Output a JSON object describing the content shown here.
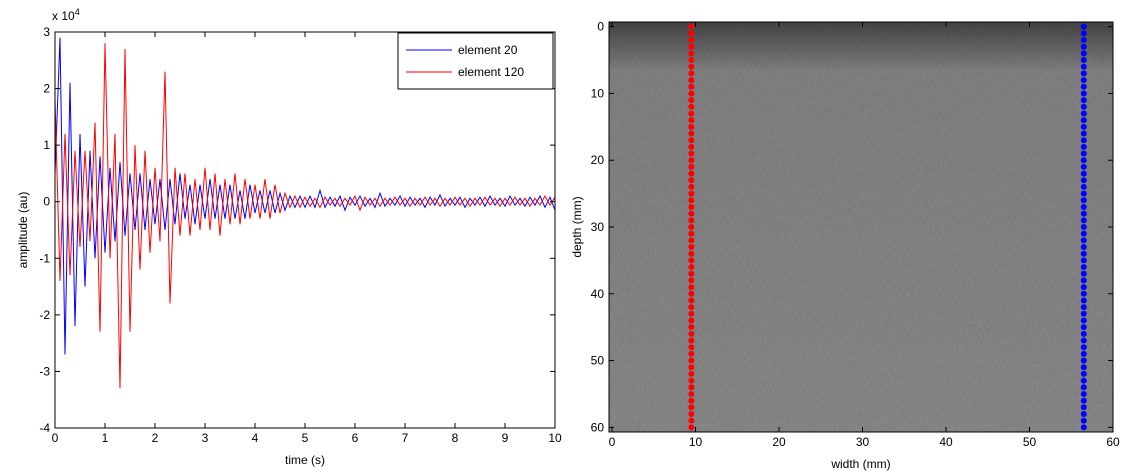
{
  "chart_data": [
    {
      "type": "line",
      "y_exponent_label": {
        "base": "x 10",
        "exponent": "4"
      },
      "xlabel": "time (s)",
      "ylabel": "amplitude (au)",
      "xlim": [
        0,
        10
      ],
      "ylim": [
        -4,
        3
      ],
      "xticks": [
        0,
        1,
        2,
        3,
        4,
        5,
        6,
        7,
        8,
        9,
        10
      ],
      "yticks": [
        -4,
        -3,
        -2,
        -1,
        0,
        1,
        2,
        3
      ],
      "legend": "upper right",
      "x": [
        0,
        0.1,
        0.2,
        0.3,
        0.4,
        0.5,
        0.6,
        0.7,
        0.8,
        0.9,
        1,
        1.1,
        1.2,
        1.3,
        1.4,
        1.5,
        1.6,
        1.7,
        1.8,
        1.9,
        2,
        2.1,
        2.2,
        2.3,
        2.4,
        2.5,
        2.6,
        2.7,
        2.8,
        2.9,
        3,
        3.1,
        3.2,
        3.3,
        3.4,
        3.5,
        3.6,
        3.7,
        3.8,
        3.9,
        4,
        4.1,
        4.2,
        4.3,
        4.4,
        4.5,
        4.6,
        4.7,
        4.8,
        4.9,
        5,
        5.1,
        5.2,
        5.3,
        5.4,
        5.5,
        5.6,
        5.7,
        5.8,
        5.9,
        6,
        6.1,
        6.2,
        6.3,
        6.4,
        6.5,
        6.6,
        6.7,
        6.8,
        6.9,
        7,
        7.1,
        7.2,
        7.3,
        7.4,
        7.5,
        7.6,
        7.7,
        7.8,
        7.9,
        8,
        8.1,
        8.2,
        8.3,
        8.4,
        8.5,
        8.6,
        8.7,
        8.8,
        8.9,
        9,
        9.1,
        9.2,
        9.3,
        9.4,
        9.5,
        9.6,
        9.7,
        9.8,
        9.9,
        10
      ],
      "series": [
        {
          "name": "element 20",
          "color": "#0000ff",
          "values": [
            0.5,
            2.9,
            -2.7,
            2.1,
            -2.2,
            1.2,
            -1.5,
            0.9,
            -1.0,
            0.8,
            -0.9,
            0.6,
            -0.7,
            0.7,
            -0.6,
            0.5,
            -0.5,
            0.5,
            -0.5,
            0.4,
            -0.4,
            0.4,
            -0.5,
            0.4,
            -0.4,
            0.5,
            -0.3,
            0.3,
            -0.4,
            0.3,
            -0.3,
            0.4,
            -0.3,
            0.3,
            -0.3,
            0.3,
            -0.3,
            0.2,
            -0.3,
            0.3,
            -0.2,
            0.2,
            -0.2,
            0.2,
            -0.2,
            0.15,
            -0.15,
            0.1,
            -0.1,
            0.1,
            -0.1,
            0.1,
            -0.1,
            0.2,
            -0.1,
            0.08,
            -0.08,
            0.1,
            -0.15,
            0.08,
            -0.06,
            0.1,
            -0.08,
            0.06,
            -0.1,
            0.15,
            -0.08,
            0.06,
            -0.06,
            0.1,
            -0.08,
            0.08,
            -0.06,
            0.06,
            -0.1,
            0.08,
            -0.06,
            0.12,
            -0.08,
            0.06,
            -0.06,
            0.08,
            -0.1,
            0.06,
            -0.06,
            0.08,
            -0.08,
            0.1,
            -0.06,
            0.06,
            -0.08,
            0.1,
            -0.06,
            0.06,
            -0.08,
            0.08,
            -0.06,
            0.1,
            -0.1,
            0.08,
            -0.15
          ]
        },
        {
          "name": "element 120",
          "color": "#ff0000",
          "values": [
            1.8,
            -1.4,
            1.2,
            -1.3,
            0.9,
            -0.8,
            0.9,
            -0.7,
            1.4,
            -2.3,
            2.8,
            -1.0,
            1.2,
            -3.3,
            2.7,
            -2.3,
            1.0,
            -1.2,
            0.9,
            -0.9,
            0.6,
            -0.7,
            2.3,
            -1.8,
            0.6,
            -0.6,
            0.5,
            -0.6,
            0.4,
            -0.5,
            0.6,
            -0.5,
            0.5,
            -0.6,
            0.4,
            -0.4,
            0.5,
            -0.4,
            0.4,
            -0.3,
            0.3,
            -0.3,
            0.4,
            -0.3,
            0.3,
            -0.2,
            0.15,
            -0.1,
            0.1,
            -0.1,
            0.08,
            -0.08,
            0.06,
            -0.1,
            0.08,
            -0.06,
            0.06,
            -0.08,
            0.06,
            -0.06,
            0.1,
            -0.15,
            0.08,
            -0.06,
            0.06,
            -0.08,
            0.06,
            -0.06,
            0.08,
            -0.06,
            0.06,
            -0.08,
            0.06,
            -0.06,
            0.08,
            -0.06,
            0.06,
            -0.08,
            0.06,
            -0.06,
            0.08,
            -0.06,
            0.06,
            -0.08,
            0.06,
            -0.06,
            0.08,
            -0.06,
            0.06,
            -0.08,
            0.06,
            -0.06,
            0.08,
            -0.06,
            0.06,
            -0.08,
            0.06,
            -0.06,
            0.1,
            -0.06,
            0.08
          ]
        }
      ]
    },
    {
      "type": "scatter",
      "xlabel": "width (mm)",
      "ylabel": "depth (mm)",
      "xlim": [
        0,
        60
      ],
      "ylim": [
        -0.7,
        60.7
      ],
      "y_reversed": true,
      "xticks": [
        0,
        10,
        20,
        30,
        40,
        50,
        60
      ],
      "yticks": [
        0,
        10,
        20,
        30,
        40,
        50,
        60
      ],
      "series": [
        {
          "color": "#ff0000",
          "x": [
            9.5,
            9.5,
            9.5,
            9.5,
            9.5,
            9.5,
            9.5,
            9.5,
            9.5,
            9.5,
            9.5,
            9.5,
            9.5,
            9.5,
            9.5,
            9.5,
            9.5,
            9.5,
            9.5,
            9.5,
            9.5,
            9.5,
            9.5,
            9.5,
            9.5,
            9.5,
            9.5,
            9.5,
            9.5,
            9.5,
            9.5,
            9.5,
            9.5,
            9.5,
            9.5,
            9.5,
            9.5,
            9.5,
            9.5,
            9.5,
            9.5,
            9.5,
            9.5,
            9.5,
            9.5,
            9.5,
            9.5,
            9.5,
            9.5,
            9.5,
            9.5,
            9.5,
            9.5,
            9.5,
            9.5,
            9.5,
            9.5,
            9.5,
            9.5,
            9.5,
            9.5
          ],
          "values": [
            0,
            1,
            2,
            3,
            4,
            5,
            6,
            7,
            8,
            9,
            10,
            11,
            12,
            13,
            14,
            15,
            16,
            17,
            18,
            19,
            20,
            21,
            22,
            23,
            24,
            25,
            26,
            27,
            28,
            29,
            30,
            31,
            32,
            33,
            34,
            35,
            36,
            37,
            38,
            39,
            40,
            41,
            42,
            43,
            44,
            45,
            46,
            47,
            48,
            49,
            50,
            51,
            52,
            53,
            54,
            55,
            56,
            57,
            58,
            59,
            60
          ]
        },
        {
          "color": "#0000ff",
          "x": [
            56.5,
            56.5,
            56.5,
            56.5,
            56.5,
            56.5,
            56.5,
            56.5,
            56.5,
            56.5,
            56.5,
            56.5,
            56.5,
            56.5,
            56.5,
            56.5,
            56.5,
            56.5,
            56.5,
            56.5,
            56.5,
            56.5,
            56.5,
            56.5,
            56.5,
            56.5,
            56.5,
            56.5,
            56.5,
            56.5,
            56.5,
            56.5,
            56.5,
            56.5,
            56.5,
            56.5,
            56.5,
            56.5,
            56.5,
            56.5,
            56.5,
            56.5,
            56.5,
            56.5,
            56.5,
            56.5,
            56.5,
            56.5,
            56.5,
            56.5,
            56.5,
            56.5,
            56.5,
            56.5,
            56.5,
            56.5,
            56.5,
            56.5,
            56.5,
            56.5,
            56.5
          ],
          "values": [
            0,
            1,
            2,
            3,
            4,
            5,
            6,
            7,
            8,
            9,
            10,
            11,
            12,
            13,
            14,
            15,
            16,
            17,
            18,
            19,
            20,
            21,
            22,
            23,
            24,
            25,
            26,
            27,
            28,
            29,
            30,
            31,
            32,
            33,
            34,
            35,
            36,
            37,
            38,
            39,
            40,
            41,
            42,
            43,
            44,
            45,
            46,
            47,
            48,
            49,
            50,
            51,
            52,
            53,
            54,
            55,
            56,
            57,
            58,
            59,
            60
          ]
        }
      ]
    }
  ]
}
